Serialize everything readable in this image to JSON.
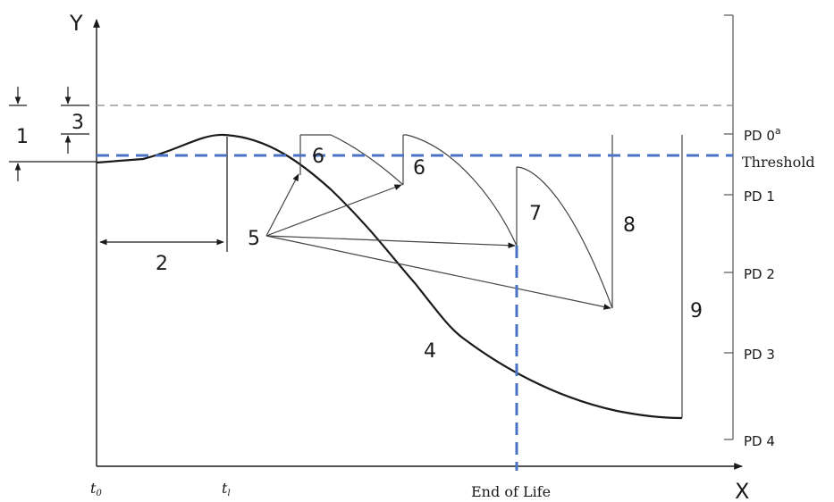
{
  "axes": {
    "y_label": "Y",
    "x_label": "X"
  },
  "time_marks": {
    "t0_base": "t",
    "t0_sub": "0",
    "tl_base": "t",
    "tl_sub": "l"
  },
  "scale": [
    {
      "base": "PD 0",
      "sup": "a"
    },
    {
      "base": "PD 1",
      "sup": ""
    },
    {
      "base": "PD 2",
      "sup": ""
    },
    {
      "base": "PD 3",
      "sup": ""
    },
    {
      "base": "PD 4",
      "sup": ""
    }
  ],
  "markers": [
    "1",
    "2",
    "3",
    "4",
    "5",
    "6",
    "6",
    "7",
    "8",
    "9"
  ],
  "annotations": {
    "threshold": "Threshold",
    "end_of_life": "End of Life"
  },
  "colors": {
    "threshold": "#4a72c4",
    "curve": "#1a1a1a",
    "reference": "#9a9a9a",
    "line": "#333333"
  }
}
